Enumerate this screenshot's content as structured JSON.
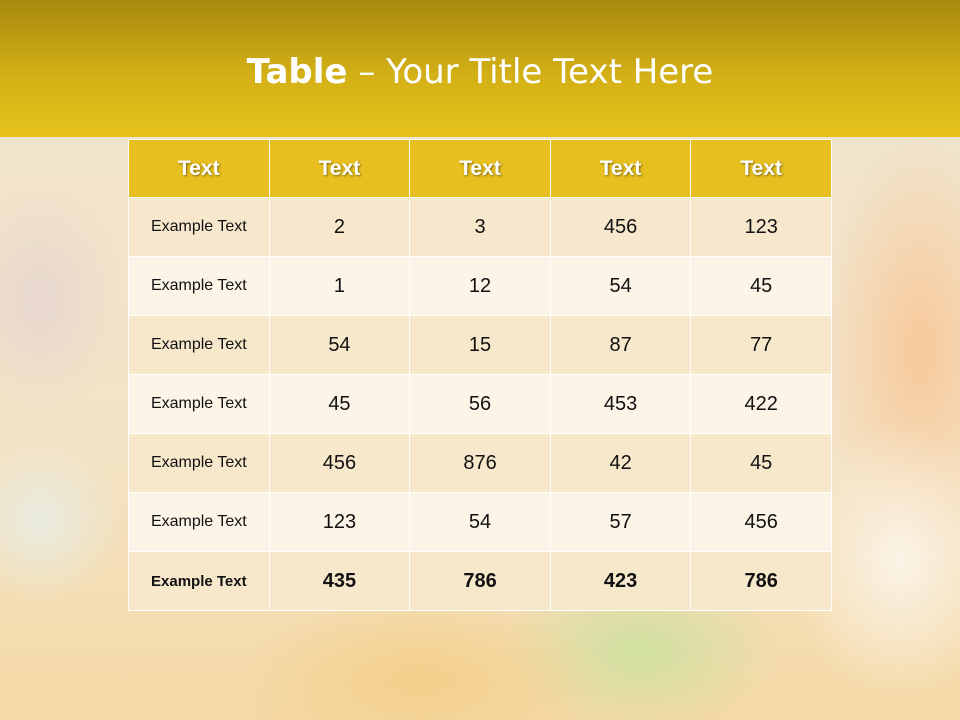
{
  "slide": {
    "title_bold": "Table",
    "title_rest": " – Your Title Text Here"
  },
  "table": {
    "headers": [
      "Text",
      "Text",
      "Text",
      "Text",
      "Text"
    ],
    "rows": [
      [
        "Example Text",
        "2",
        "3",
        "456",
        "123"
      ],
      [
        "Example Text",
        "1",
        "12",
        "54",
        "45"
      ],
      [
        "Example Text",
        "54",
        "15",
        "87",
        "77"
      ],
      [
        "Example Text",
        "45",
        "56",
        "453",
        "422"
      ],
      [
        "Example Text",
        "456",
        "876",
        "42",
        "45"
      ],
      [
        "Example Text",
        "123",
        "54",
        "57",
        "456"
      ],
      [
        "Example Text",
        "435",
        "786",
        "423",
        "786"
      ]
    ]
  },
  "colors": {
    "header_bar": "#d3b015",
    "table_header": "#e7bf1e",
    "row_odd": "#f7e8cc",
    "row_even": "#fcf4e8"
  }
}
